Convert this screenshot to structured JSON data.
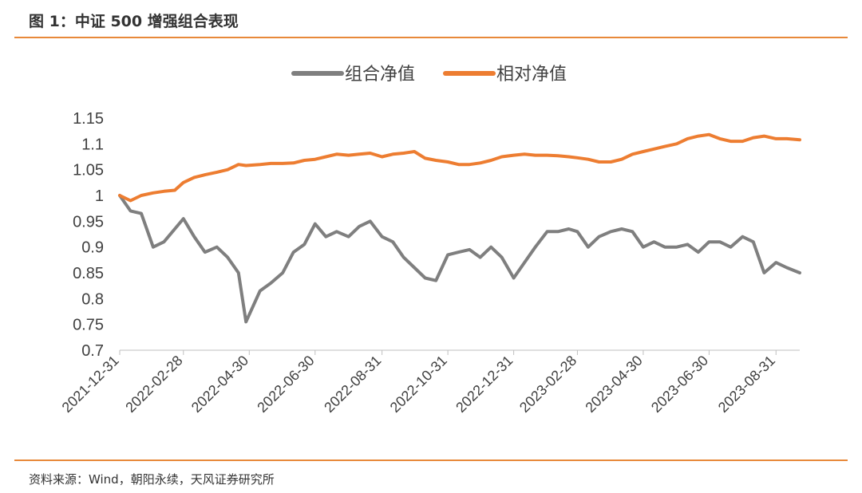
{
  "header": {
    "title": "图 1：中证 500 增强组合表现"
  },
  "footer": {
    "source": "资料来源：Wind，朝阳永续，天风证券研究所"
  },
  "colors": {
    "accent": "#E8893A",
    "series_gray": "#7F7F7F",
    "series_orange": "#ED7D31"
  },
  "chart_data": {
    "type": "line",
    "title": "",
    "xlabel": "",
    "ylabel": "",
    "ylim": [
      0.7,
      1.15
    ],
    "yticks": [
      "0.7",
      "0.75",
      "0.8",
      "0.85",
      "0.9",
      "0.95",
      "1",
      "1.05",
      "1.1",
      "1.15"
    ],
    "xticks": [
      "2021-12-31",
      "2022-02-28",
      "2022-04-30",
      "2022-06-30",
      "2022-08-31",
      "2022-10-31",
      "2022-12-31",
      "2023-02-28",
      "2023-04-30",
      "2023-06-30",
      "2023-08-31"
    ],
    "grid": false,
    "legend_position": "top-center",
    "x": [
      "2021-12-31",
      "2022-01-10",
      "2022-01-20",
      "2022-01-31",
      "2022-02-10",
      "2022-02-20",
      "2022-02-28",
      "2022-03-10",
      "2022-03-20",
      "2022-03-31",
      "2022-04-10",
      "2022-04-20",
      "2022-04-27",
      "2022-05-10",
      "2022-05-20",
      "2022-05-31",
      "2022-06-10",
      "2022-06-20",
      "2022-06-30",
      "2022-07-10",
      "2022-07-20",
      "2022-07-31",
      "2022-08-10",
      "2022-08-20",
      "2022-08-31",
      "2022-09-10",
      "2022-09-20",
      "2022-09-30",
      "2022-10-10",
      "2022-10-20",
      "2022-10-31",
      "2022-11-10",
      "2022-11-20",
      "2022-11-30",
      "2022-12-10",
      "2022-12-20",
      "2022-12-31",
      "2023-01-10",
      "2023-01-20",
      "2023-01-31",
      "2023-02-10",
      "2023-02-20",
      "2023-02-28",
      "2023-03-10",
      "2023-03-20",
      "2023-03-31",
      "2023-04-10",
      "2023-04-20",
      "2023-04-30",
      "2023-05-10",
      "2023-05-20",
      "2023-05-31",
      "2023-06-10",
      "2023-06-20",
      "2023-06-30",
      "2023-07-10",
      "2023-07-20",
      "2023-07-31",
      "2023-08-10",
      "2023-08-20",
      "2023-08-31",
      "2023-09-10",
      "2023-09-22"
    ],
    "series": [
      {
        "name": "组合净值",
        "color": "#7F7F7F",
        "values": [
          1.0,
          0.97,
          0.965,
          0.9,
          0.91,
          0.935,
          0.955,
          0.92,
          0.89,
          0.9,
          0.88,
          0.85,
          0.755,
          0.815,
          0.83,
          0.85,
          0.89,
          0.905,
          0.945,
          0.92,
          0.93,
          0.92,
          0.94,
          0.95,
          0.92,
          0.91,
          0.88,
          0.86,
          0.84,
          0.835,
          0.885,
          0.89,
          0.895,
          0.88,
          0.9,
          0.88,
          0.84,
          0.87,
          0.9,
          0.93,
          0.93,
          0.935,
          0.93,
          0.9,
          0.92,
          0.93,
          0.935,
          0.93,
          0.9,
          0.91,
          0.9,
          0.9,
          0.905,
          0.89,
          0.91,
          0.91,
          0.9,
          0.92,
          0.91,
          0.85,
          0.87,
          0.86,
          0.85
        ]
      },
      {
        "name": "相对净值",
        "color": "#ED7D31",
        "values": [
          1.0,
          0.99,
          1.0,
          1.005,
          1.008,
          1.01,
          1.025,
          1.035,
          1.04,
          1.045,
          1.05,
          1.06,
          1.058,
          1.06,
          1.062,
          1.062,
          1.063,
          1.068,
          1.07,
          1.075,
          1.08,
          1.078,
          1.08,
          1.082,
          1.075,
          1.08,
          1.082,
          1.085,
          1.072,
          1.068,
          1.065,
          1.06,
          1.06,
          1.063,
          1.068,
          1.075,
          1.078,
          1.08,
          1.078,
          1.078,
          1.077,
          1.075,
          1.073,
          1.07,
          1.065,
          1.065,
          1.07,
          1.08,
          1.085,
          1.09,
          1.095,
          1.1,
          1.11,
          1.115,
          1.118,
          1.11,
          1.105,
          1.105,
          1.112,
          1.115,
          1.11,
          1.11,
          1.108
        ]
      }
    ]
  }
}
